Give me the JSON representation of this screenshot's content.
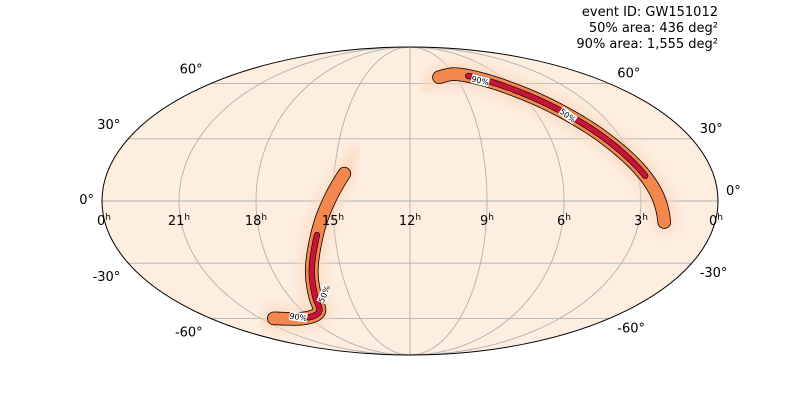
{
  "info": {
    "event_id": "event ID: GW151012",
    "area_50": "50% area: 436 deg²",
    "area_90": "90% area: 1,555 deg²"
  },
  "projection": "mollweide",
  "colors": {
    "background": "#ffffff",
    "sky_fill": "#fdeee0",
    "grid": "#b0b0b0",
    "outline": "#000000",
    "prob_low": "#fbd9bf",
    "prob_mid": "#f4874e",
    "prob_high": "#c8143a"
  },
  "ra_labels": [
    {
      "hours": 24,
      "text": "0",
      "unit": "h"
    },
    {
      "hours": 21,
      "text": "21",
      "unit": "h"
    },
    {
      "hours": 18,
      "text": "18",
      "unit": "h"
    },
    {
      "hours": 15,
      "text": "15",
      "unit": "h"
    },
    {
      "hours": 12,
      "text": "12",
      "unit": "h"
    },
    {
      "hours": 9,
      "text": "9",
      "unit": "h"
    },
    {
      "hours": 6,
      "text": "6",
      "unit": "h"
    },
    {
      "hours": 3,
      "text": "3",
      "unit": "h"
    },
    {
      "hours": 0,
      "text": "0",
      "unit": "h"
    }
  ],
  "dec_labels": [
    {
      "deg": 60,
      "text": "60°"
    },
    {
      "deg": 30,
      "text": "30°"
    },
    {
      "deg": 0,
      "text": "0°"
    },
    {
      "deg": -30,
      "text": "-30°"
    },
    {
      "deg": -60,
      "text": "-60°"
    }
  ],
  "contour_labels": [
    {
      "text": "90%",
      "ra": 7.6,
      "dec": 62,
      "angle": 14
    },
    {
      "text": "50%",
      "ra": 4.6,
      "dec": 42,
      "angle": 36
    },
    {
      "text": "50%",
      "ra": 16.2,
      "dec": -46,
      "angle": -68
    },
    {
      "text": "90%",
      "ra": 18.6,
      "dec": -59,
      "angle": 8
    }
  ],
  "arcs": [
    {
      "name": "north-arc",
      "outer_width": 12,
      "inner_width": 5,
      "inner_range": [
        0.22,
        0.8
      ],
      "points": [
        [
          10.1,
          64
        ],
        [
          9.0,
          66
        ],
        [
          7.8,
          64
        ],
        [
          6.5,
          58.5
        ],
        [
          5.2,
          49
        ],
        [
          4.0,
          35
        ],
        [
          3.0,
          18
        ],
        [
          2.4,
          4
        ],
        [
          2.0,
          -10
        ]
      ],
      "faint_points": [
        [
          11.3,
          56
        ],
        [
          10.6,
          62
        ]
      ]
    },
    {
      "name": "south-arc",
      "outer_width": 12,
      "inner_width": 5,
      "inner_range": [
        0.32,
        0.84
      ],
      "points": [
        [
          14.6,
          13
        ],
        [
          15.0,
          4
        ],
        [
          15.45,
          -8
        ],
        [
          15.9,
          -22
        ],
        [
          16.3,
          -34
        ],
        [
          16.7,
          -47
        ],
        [
          17.1,
          -56
        ],
        [
          18.4,
          -60
        ],
        [
          20.2,
          -60
        ]
      ],
      "faint_points": [
        [
          14.4,
          20
        ],
        [
          14.2,
          26
        ]
      ]
    }
  ]
}
